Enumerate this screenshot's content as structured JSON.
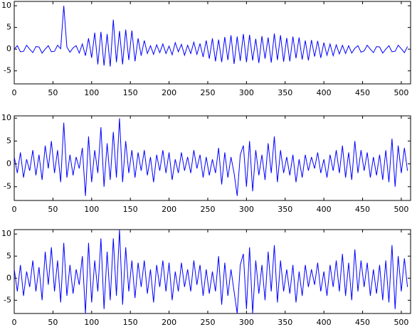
{
  "chart_data": [
    {
      "type": "line",
      "x": [
        0,
        4,
        8,
        12,
        16,
        20,
        24,
        28,
        32,
        36,
        40,
        44,
        48,
        52,
        56,
        60,
        64,
        68,
        72,
        76,
        80,
        84,
        88,
        92,
        96,
        100,
        104,
        108,
        112,
        116,
        120,
        124,
        128,
        132,
        136,
        140,
        144,
        148,
        152,
        156,
        160,
        164,
        168,
        172,
        176,
        180,
        184,
        188,
        192,
        196,
        200,
        204,
        208,
        212,
        216,
        220,
        224,
        228,
        232,
        236,
        240,
        244,
        248,
        252,
        256,
        260,
        264,
        268,
        272,
        276,
        280,
        284,
        288,
        292,
        296,
        300,
        304,
        308,
        312,
        316,
        320,
        324,
        328,
        332,
        336,
        340,
        344,
        348,
        352,
        356,
        360,
        364,
        368,
        372,
        376,
        380,
        384,
        388,
        392,
        396,
        400,
        404,
        408,
        412,
        416,
        420,
        424,
        428,
        432,
        436,
        440,
        444,
        448,
        452,
        456,
        460,
        464,
        468,
        472,
        476,
        480,
        484,
        488,
        492,
        496,
        500,
        504,
        508
      ],
      "series": [
        {
          "color": "#0000ff",
          "values": [
            0,
            0.8,
            -0.6,
            -0.5,
            0.9,
            0,
            -0.8,
            0.6,
            0.5,
            -0.9,
            0,
            0.8,
            -0.6,
            -0.5,
            0.9,
            0.1,
            10,
            0.5,
            -0.7,
            0.3,
            0.8,
            -0.9,
            1.2,
            -1.5,
            2.5,
            -2,
            3.8,
            -3.5,
            4,
            -3.8,
            3.5,
            -4,
            6.8,
            -3,
            4.2,
            -3.5,
            4.5,
            -2.5,
            4.3,
            -2.8,
            2.5,
            -1.5,
            2,
            -1,
            0.8,
            -1.2,
            1,
            -0.8,
            1.2,
            -1,
            0.7,
            -1.3,
            1.5,
            -0.6,
            1.1,
            -1.4,
            0.9,
            -1,
            1.6,
            -1.2,
            1.3,
            -1.8,
            2,
            -2.2,
            2.5,
            -2.8,
            2.2,
            -3,
            2.8,
            -2.5,
            3.2,
            -3.4,
            2.9,
            -2.7,
            3.5,
            -3,
            3.3,
            -2.6,
            2.4,
            -3.2,
            3,
            -2.2,
            2.7,
            -3.1,
            3.6,
            -2.5,
            3.2,
            -2.9,
            2.6,
            -2.8,
            2.9,
            -2.1,
            2.7,
            -2.4,
            2,
            -2.6,
            2.1,
            -1.7,
            1.9,
            -2,
            1.5,
            -1.4,
            1.2,
            -1.5,
            1,
            -1.1,
            0.9,
            -1,
            0.8,
            -0.9,
            0.2,
            0.8,
            -0.7,
            -0.4,
            0.9,
            0,
            -0.8,
            0.6,
            0.5,
            -0.9,
            0,
            0.8,
            -0.6,
            -0.5,
            0.9,
            0.1,
            -0.8,
            0.6
          ]
        }
      ],
      "xlim": [
        0,
        512
      ],
      "xticks": [
        0,
        50,
        100,
        150,
        200,
        250,
        300,
        350,
        400,
        450,
        500
      ],
      "ylim": [
        -8,
        11
      ],
      "yticks": [
        -5,
        0,
        5,
        10
      ]
    },
    {
      "type": "line",
      "x": [
        0,
        4,
        8,
        12,
        16,
        20,
        24,
        28,
        32,
        36,
        40,
        44,
        48,
        52,
        56,
        60,
        64,
        68,
        72,
        76,
        80,
        84,
        88,
        92,
        96,
        100,
        104,
        108,
        112,
        116,
        120,
        124,
        128,
        132,
        136,
        140,
        144,
        148,
        152,
        156,
        160,
        164,
        168,
        172,
        176,
        180,
        184,
        188,
        192,
        196,
        200,
        204,
        208,
        212,
        216,
        220,
        224,
        228,
        232,
        236,
        240,
        244,
        248,
        252,
        256,
        260,
        264,
        268,
        272,
        276,
        280,
        284,
        288,
        292,
        296,
        300,
        304,
        308,
        312,
        316,
        320,
        324,
        328,
        332,
        336,
        340,
        344,
        348,
        352,
        356,
        360,
        364,
        368,
        372,
        376,
        380,
        384,
        388,
        392,
        396,
        400,
        404,
        408,
        412,
        416,
        420,
        424,
        428,
        432,
        436,
        440,
        444,
        448,
        452,
        456,
        460,
        464,
        468,
        472,
        476,
        480,
        484,
        488,
        492,
        496,
        500,
        504,
        508
      ],
      "series": [
        {
          "color": "#0000ff",
          "values": [
            1.5,
            -2,
            2.5,
            -3,
            1,
            -1.5,
            3,
            -2.5,
            2,
            -3.5,
            4,
            -1,
            5,
            -2,
            3,
            -4,
            9,
            -3,
            2,
            -2.5,
            1.5,
            -1,
            3.5,
            -7,
            6,
            -4,
            3,
            -2,
            8,
            -5,
            4.5,
            -3.5,
            7,
            -3,
            10,
            -4,
            5,
            -2,
            3,
            -3,
            2.5,
            -1.5,
            3,
            -2.5,
            1.5,
            -4,
            2,
            -1.5,
            3,
            -2,
            2.5,
            -3.5,
            1,
            -2,
            2.5,
            -1.5,
            1.5,
            -2,
            3,
            -1,
            2,
            -3,
            1.5,
            -2.5,
            1,
            -2,
            3.5,
            -4.5,
            2.5,
            -3,
            1.5,
            -2,
            -7,
            2,
            4,
            -5,
            5,
            -6,
            3,
            -2.5,
            2,
            -3.5,
            4.5,
            -2,
            6,
            -4,
            3,
            -2,
            1.5,
            -2.5,
            2,
            -4,
            1,
            -3,
            2,
            -1.5,
            1.5,
            -1,
            2.5,
            -2,
            1,
            -3,
            2,
            -1.5,
            3,
            -2,
            4,
            -3,
            2.5,
            -3.5,
            5,
            -2,
            3,
            -1.5,
            2.5,
            -3,
            1.5,
            -2.5,
            2,
            -3.5,
            3,
            -4,
            5.5,
            -5,
            4,
            -2,
            3.5,
            -1.5
          ]
        }
      ],
      "xlim": [
        0,
        512
      ],
      "xticks": [
        0,
        50,
        100,
        150,
        200,
        250,
        300,
        350,
        400,
        450,
        500
      ],
      "ylim": [
        -8,
        10.5
      ],
      "yticks": [
        -5,
        0,
        5,
        10
      ]
    },
    {
      "type": "line",
      "x": [
        0,
        4,
        8,
        12,
        16,
        20,
        24,
        28,
        32,
        36,
        40,
        44,
        48,
        52,
        56,
        60,
        64,
        68,
        72,
        76,
        80,
        84,
        88,
        92,
        96,
        100,
        104,
        108,
        112,
        116,
        120,
        124,
        128,
        132,
        136,
        140,
        144,
        148,
        152,
        156,
        160,
        164,
        168,
        172,
        176,
        180,
        184,
        188,
        192,
        196,
        200,
        204,
        208,
        212,
        216,
        220,
        224,
        228,
        232,
        236,
        240,
        244,
        248,
        252,
        256,
        260,
        264,
        268,
        272,
        276,
        280,
        284,
        288,
        292,
        296,
        300,
        304,
        308,
        312,
        316,
        320,
        324,
        328,
        332,
        336,
        340,
        344,
        348,
        352,
        356,
        360,
        364,
        368,
        372,
        376,
        380,
        384,
        388,
        392,
        396,
        400,
        404,
        408,
        412,
        416,
        420,
        424,
        428,
        432,
        436,
        440,
        444,
        448,
        452,
        456,
        460,
        464,
        468,
        472,
        476,
        480,
        484,
        488,
        492,
        496,
        500,
        504,
        508
      ],
      "series": [
        {
          "color": "#0000ff",
          "values": [
            2,
            -3,
            3,
            -4,
            1.5,
            -2,
            4,
            -3,
            2.5,
            -5,
            6,
            -1.5,
            7,
            -3,
            4,
            -5.5,
            8,
            -4,
            3,
            -3.5,
            2,
            -1.5,
            5,
            -8,
            8,
            -5.5,
            4,
            -3,
            9,
            -7,
            6,
            -5,
            9,
            -4,
            11,
            -6,
            7,
            -3,
            4,
            -4.5,
            3.5,
            -2,
            4,
            -3.5,
            2,
            -5.5,
            3,
            -2,
            4,
            -3,
            3.5,
            -5,
            1.5,
            -3,
            3.5,
            -2,
            2,
            -3,
            4,
            -1.5,
            3,
            -4,
            2,
            -3.5,
            1.5,
            -3,
            5,
            -6,
            3.5,
            -4,
            2,
            -3,
            -8,
            3,
            5.5,
            -7,
            7,
            -8,
            4,
            -3.5,
            3,
            -5,
            6,
            -3,
            7.5,
            -5.5,
            4,
            -3,
            2,
            -3.5,
            3,
            -5.5,
            1.5,
            -4,
            3,
            -2,
            2,
            -1.5,
            3.5,
            -3,
            1.5,
            -4,
            3,
            -2,
            4,
            -3,
            5.5,
            -4,
            3.5,
            -5,
            6.5,
            -3,
            4,
            -2,
            3.5,
            -4,
            2,
            -3.5,
            3,
            -5,
            4,
            -5.5,
            7.5,
            -7,
            5,
            -3,
            4.5,
            -2
          ]
        }
      ],
      "xlim": [
        0,
        512
      ],
      "xticks": [
        0,
        50,
        100,
        150,
        200,
        250,
        300,
        350,
        400,
        450,
        500
      ],
      "ylim": [
        -8,
        11
      ],
      "yticks": [
        -5,
        0,
        5,
        10
      ]
    }
  ]
}
